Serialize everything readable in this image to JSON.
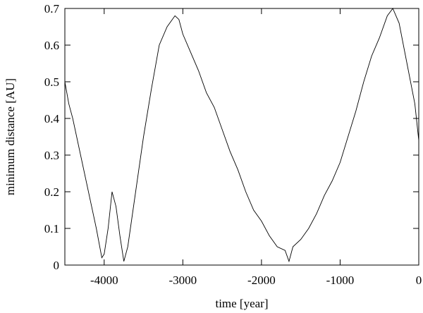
{
  "chart_data": {
    "type": "line",
    "xlabel": "time [year]",
    "ylabel": "minimum distance [AU]",
    "x": [
      -4500,
      -4450,
      -4400,
      -4300,
      -4200,
      -4100,
      -4030,
      -4000,
      -3950,
      -3900,
      -3850,
      -3800,
      -3750,
      -3700,
      -3600,
      -3500,
      -3400,
      -3300,
      -3200,
      -3100,
      -3050,
      -3000,
      -2900,
      -2800,
      -2700,
      -2600,
      -2500,
      -2400,
      -2300,
      -2200,
      -2100,
      -2000,
      -1900,
      -1800,
      -1700,
      -1650,
      -1600,
      -1500,
      -1400,
      -1300,
      -1200,
      -1100,
      -1000,
      -900,
      -800,
      -700,
      -600,
      -500,
      -400,
      -330,
      -250,
      -150,
      -50,
      0
    ],
    "values": [
      0.5,
      0.44,
      0.4,
      0.3,
      0.2,
      0.1,
      0.02,
      0.03,
      0.1,
      0.2,
      0.16,
      0.08,
      0.01,
      0.05,
      0.2,
      0.35,
      0.48,
      0.6,
      0.65,
      0.68,
      0.67,
      0.63,
      0.58,
      0.53,
      0.47,
      0.43,
      0.37,
      0.31,
      0.26,
      0.2,
      0.15,
      0.12,
      0.08,
      0.05,
      0.04,
      0.01,
      0.05,
      0.07,
      0.1,
      0.14,
      0.19,
      0.23,
      0.28,
      0.35,
      0.42,
      0.5,
      0.57,
      0.62,
      0.68,
      0.7,
      0.66,
      0.55,
      0.44,
      0.34
    ],
    "color": "#000000",
    "xlim": [
      -4500,
      0
    ],
    "xticks": [
      -4000,
      -3000,
      -2000,
      -1000,
      0
    ],
    "ylim": [
      0,
      0.7
    ],
    "yticks": [
      0,
      0.1,
      0.2,
      0.3,
      0.4,
      0.5,
      0.6,
      0.7
    ]
  }
}
